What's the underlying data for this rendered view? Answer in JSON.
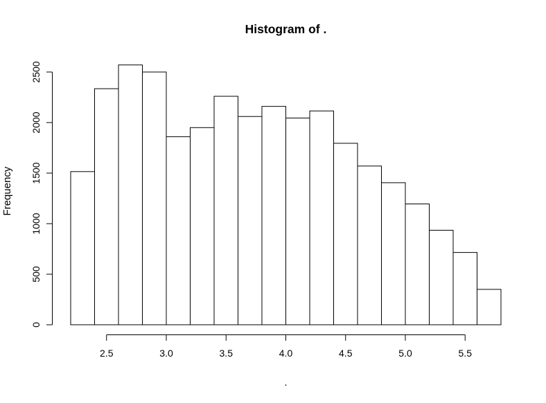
{
  "figure": {
    "background": "#ffffff"
  },
  "chart_data": {
    "type": "bar",
    "subtype": "histogram",
    "title": "Histogram of .",
    "xlabel": ".",
    "ylabel": "Frequency",
    "bin_edges": [
      2.2,
      2.4,
      2.6,
      2.8,
      3.0,
      3.2,
      3.4,
      3.6,
      3.8,
      4.0,
      4.2,
      4.4,
      4.6,
      4.8,
      5.0,
      5.2,
      5.4,
      5.6,
      5.8
    ],
    "values": [
      1515,
      2335,
      2570,
      2500,
      1860,
      1950,
      2260,
      2060,
      2160,
      2045,
      2115,
      1795,
      1570,
      1405,
      1195,
      935,
      715,
      350
    ],
    "xticks": [
      {
        "v": 2.5,
        "label": "2.5"
      },
      {
        "v": 3.0,
        "label": "3.0"
      },
      {
        "v": 3.5,
        "label": "3.5"
      },
      {
        "v": 4.0,
        "label": "4.0"
      },
      {
        "v": 4.5,
        "label": "4.5"
      },
      {
        "v": 5.0,
        "label": "5.0"
      },
      {
        "v": 5.5,
        "label": "5.5"
      }
    ],
    "yticks": [
      {
        "v": 0,
        "label": "0"
      },
      {
        "v": 500,
        "label": "500"
      },
      {
        "v": 1000,
        "label": "1000"
      },
      {
        "v": 1500,
        "label": "1500"
      },
      {
        "v": 2000,
        "label": "2000"
      },
      {
        "v": 2500,
        "label": "2500"
      }
    ],
    "xlim": [
      2.2,
      5.8
    ],
    "ylim": [
      0,
      2600
    ],
    "grid": false,
    "legend": false,
    "bar_fill": "#ffffff",
    "bar_stroke": "#000000",
    "axis_color": "#000000",
    "text_color": "#000000"
  }
}
